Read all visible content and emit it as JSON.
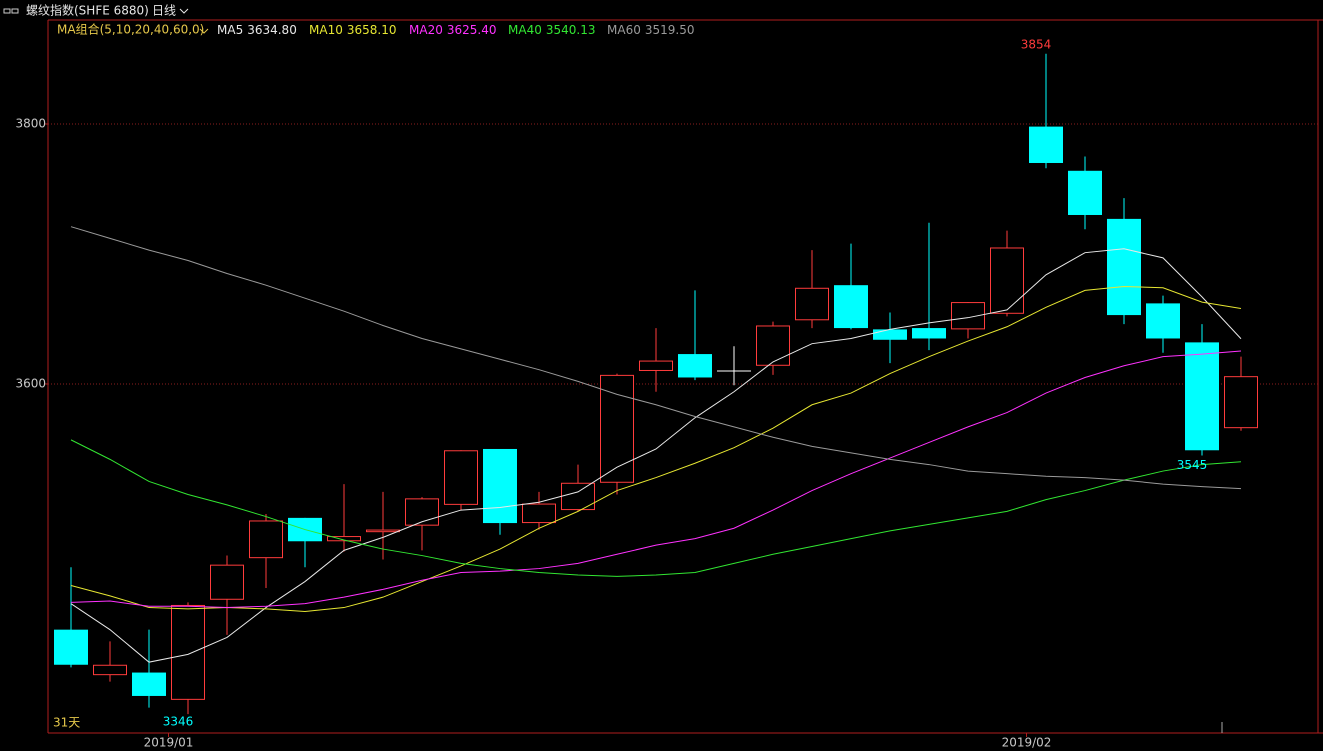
{
  "chart_data": {
    "type": "candlestick",
    "title": "螺纹指数(SHFE 6880)",
    "period": "日线",
    "ma_group": "MA组合(5,10,20,40,60,0)",
    "count_label": "31天",
    "categories": [
      null,
      null,
      null,
      "2019/01",
      null,
      null,
      null,
      null,
      null,
      null,
      null,
      null,
      null,
      null,
      null,
      null,
      null,
      null,
      null,
      null,
      null,
      null,
      null,
      null,
      null,
      "2019/02",
      null,
      null,
      null,
      null,
      null
    ],
    "open": [
      3411,
      3376,
      3378,
      3357,
      3434,
      3466,
      3497,
      3479,
      3486,
      3491,
      3507,
      3550,
      3493,
      3503,
      3524,
      3610,
      3623,
      3610,
      3614,
      3649,
      3676,
      3642,
      3643,
      3642,
      3654,
      3798,
      3764,
      3727,
      3662,
      3632,
      3566
    ],
    "high": [
      3459,
      3402,
      3411,
      3432,
      3468,
      3500,
      3497,
      3523,
      3517,
      3513,
      3549,
      3550,
      3517,
      3538,
      3608,
      3643,
      3672,
      3629,
      3648,
      3703,
      3708,
      3655,
      3724,
      3663,
      3718,
      3854,
      3775,
      3743,
      3668,
      3646,
      3621
    ],
    "low": [
      3382,
      3371,
      3351,
      3346,
      3407,
      3443,
      3459,
      3471,
      3465,
      3472,
      3503,
      3484,
      3488,
      3502,
      3515,
      3594,
      3603,
      3599,
      3607,
      3643,
      3642,
      3616,
      3626,
      3635,
      3652,
      3766,
      3719,
      3646,
      3624,
      3545,
      3564
    ],
    "close": [
      3384,
      3384,
      3360,
      3430,
      3461,
      3495,
      3479,
      3483,
      3488,
      3512,
      3549,
      3493,
      3508,
      3524,
      3607,
      3618,
      3605,
      3610,
      3645,
      3674,
      3643,
      3634,
      3635,
      3663,
      3705,
      3770,
      3730,
      3653,
      3635,
      3549,
      3606
    ],
    "up_color": "#ff3c3c",
    "down_color": "#00ffff",
    "flat_color": "#ffffff",
    "series": [
      {
        "name": "MA5",
        "color": "#e8e8e8",
        "current_label": "3634.80",
        "values": [
          3431,
          3411,
          3386,
          3392,
          3405,
          3428,
          3448,
          3472,
          3482,
          3494,
          3503,
          3505,
          3509,
          3517,
          3536,
          3550,
          3574,
          3594,
          3617,
          3631,
          3635,
          3642,
          3647,
          3651,
          3657,
          3684,
          3701,
          3704,
          3697,
          3667,
          3634.8
        ]
      },
      {
        "name": "MA10",
        "color": "#e6e632",
        "current_label": "3658.10",
        "values": [
          3445,
          3437,
          3428,
          3427,
          3428,
          3427,
          3425,
          3428,
          3436,
          3448,
          3460,
          3473,
          3489,
          3502,
          3518,
          3528,
          3539,
          3551,
          3566,
          3584,
          3593,
          3608,
          3621,
          3633,
          3644,
          3659,
          3672,
          3675,
          3674,
          3663,
          3658.1
        ]
      },
      {
        "name": "MA20",
        "color": "#ff32ff",
        "current_label": "3625.40",
        "values": [
          3432,
          3433,
          3429,
          3429,
          3428,
          3429,
          3431,
          3436,
          3442,
          3449,
          3455,
          3456,
          3458,
          3462,
          3469,
          3476,
          3481,
          3489,
          3503,
          3518,
          3531,
          3543,
          3555,
          3567,
          3578,
          3593,
          3605,
          3614,
          3621,
          3623,
          3625.4
        ]
      },
      {
        "name": "MA40",
        "color": "#32e632",
        "current_label": "3540.13",
        "values": [
          3557,
          3542,
          3525,
          3515,
          3507,
          3498,
          3488,
          3480,
          3473,
          3468,
          3462,
          3458,
          3455,
          3453,
          3452,
          3453,
          3455,
          3462,
          3469,
          3475,
          3481,
          3487,
          3492,
          3497,
          3502,
          3511,
          3518,
          3526,
          3533,
          3538,
          3540.13
        ]
      },
      {
        "name": "MA60",
        "color": "#9a9a9a",
        "current_label": "3519.50",
        "values": [
          3721,
          3712,
          3703,
          3695,
          3685,
          3676,
          3666,
          3656,
          3645,
          3635,
          3627,
          3619,
          3611,
          3602,
          3592,
          3584,
          3575,
          3567,
          3559,
          3552,
          3547,
          3542,
          3538,
          3533,
          3531,
          3529,
          3528,
          3526,
          3523,
          3521,
          3519.5
        ]
      }
    ],
    "ylim": [
      3331.5,
      3880
    ],
    "yticks": [
      3600,
      3800
    ],
    "grid": true
  }
}
